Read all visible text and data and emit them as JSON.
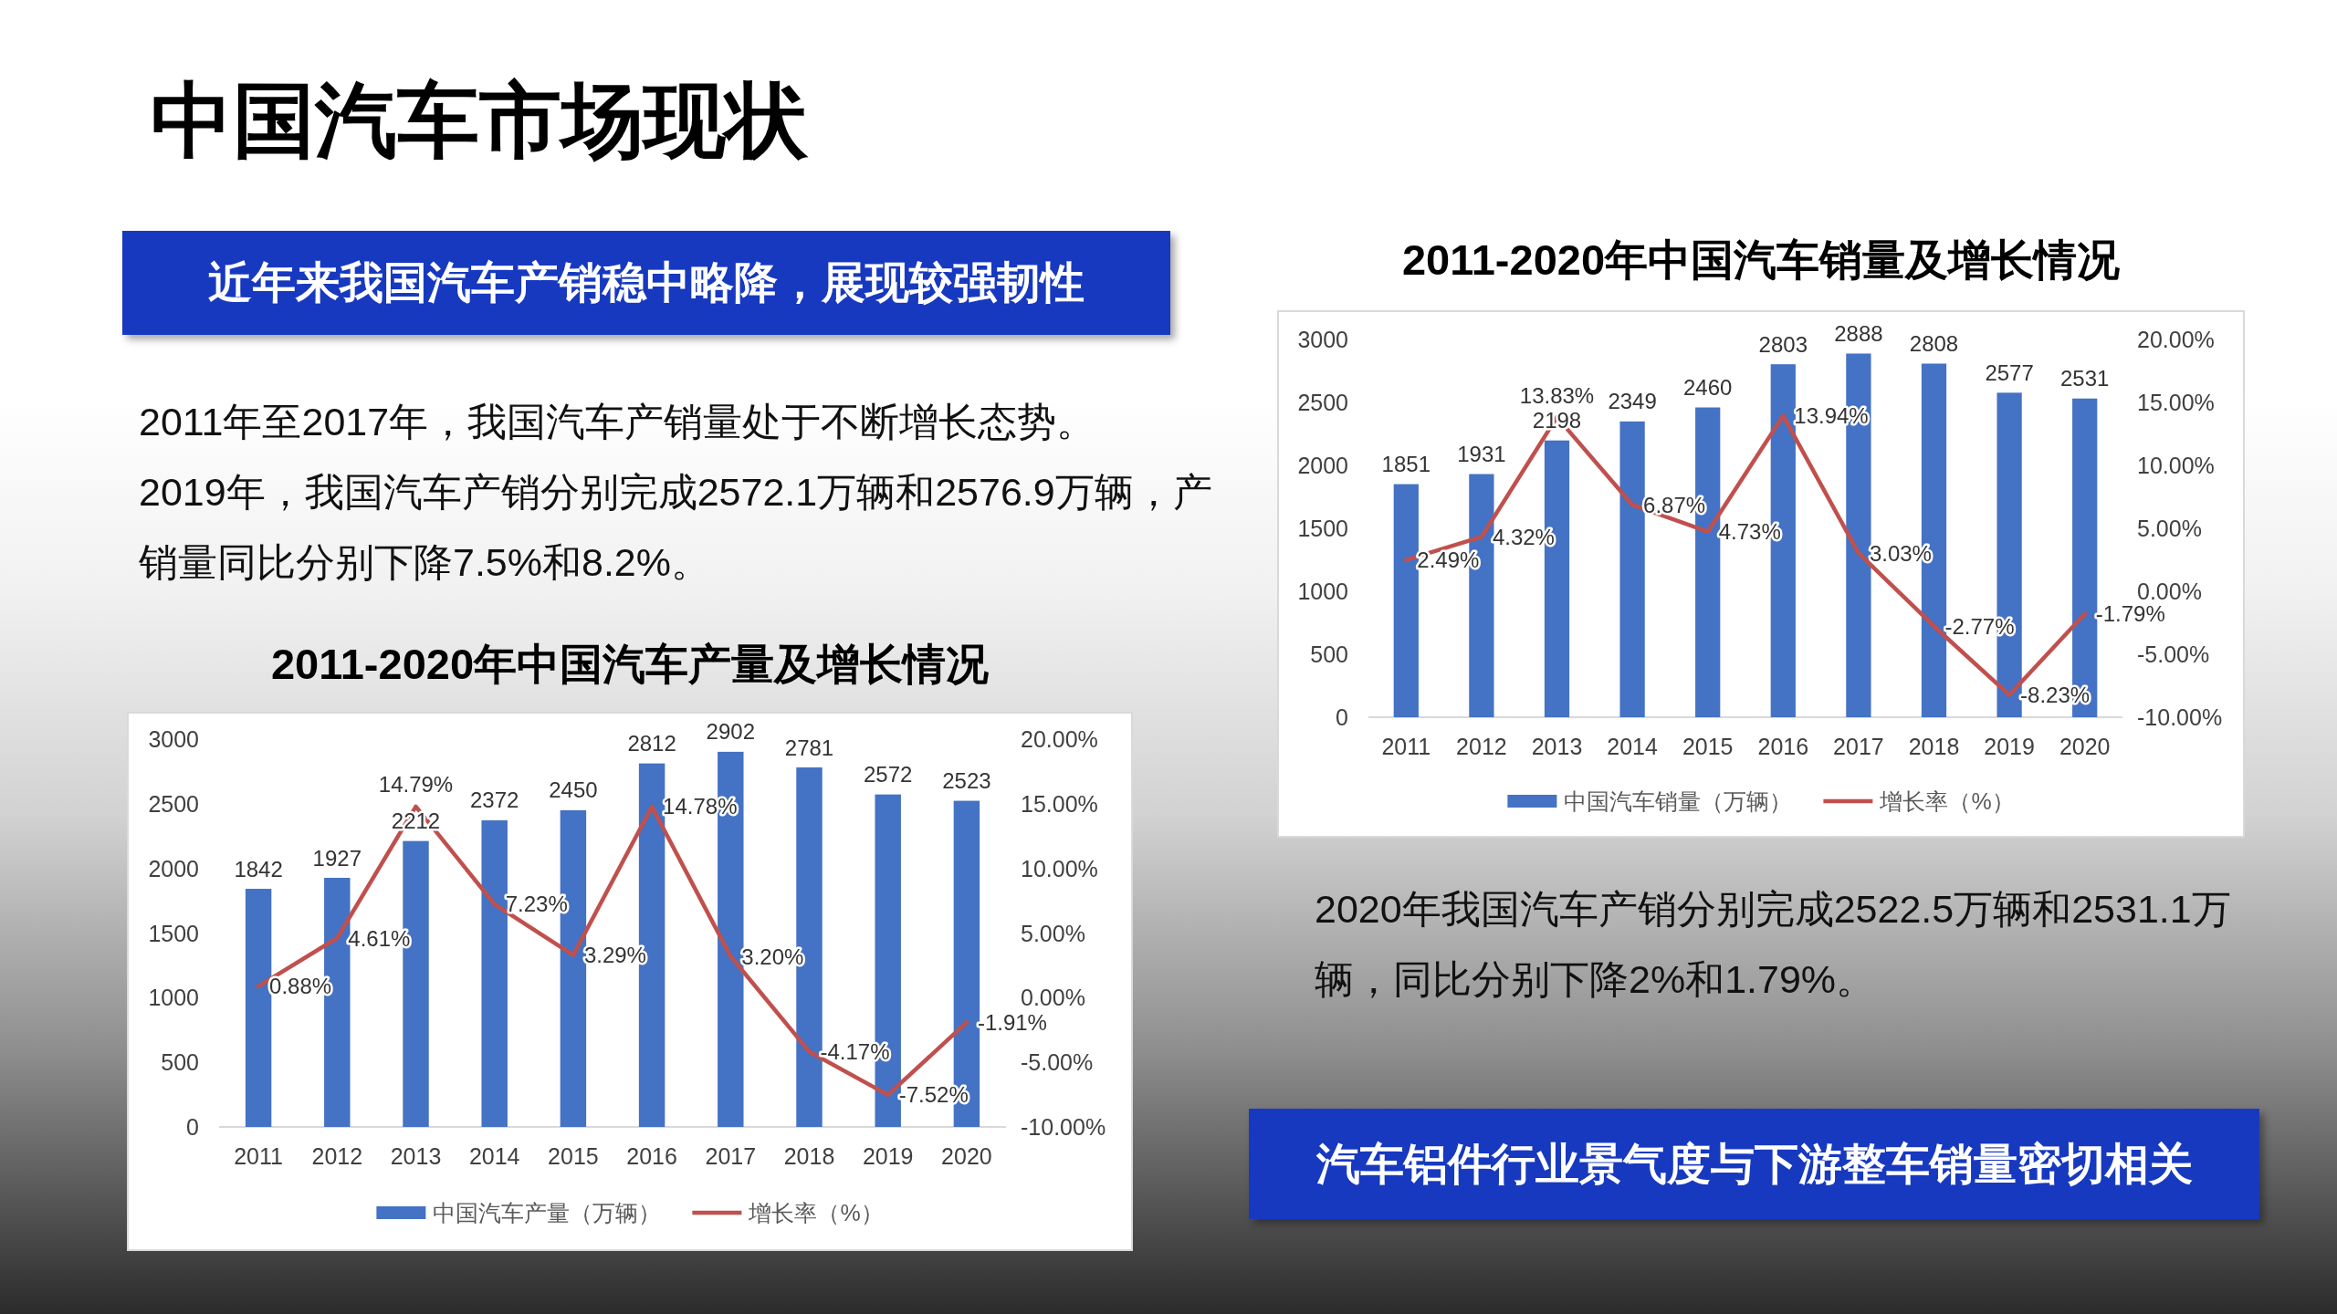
{
  "chart_data": [
    {
      "type": "other",
      "title": "中国汽车市场现状",
      "annotations": [
        "近年来我国汽车产销稳中略降，展现较强韧性",
        "2011年至2017年，我国汽车产销量处于不断增长态势。",
        "2019年，我国汽车产销分别完成2572.1万辆和2576.9万辆，产销量同比分别下降7.5%和8.2%。"
      ]
    },
    {
      "type": "bar",
      "title": "2011-2020年中国汽车产量及增长情况",
      "categories": [
        "2011",
        "2012",
        "2013",
        "2014",
        "2015",
        "2016",
        "2017",
        "2018",
        "2019",
        "2020"
      ],
      "series": [
        {
          "name": "中国汽车产量（万辆）",
          "color": "#4472c4",
          "values": [
            1842,
            1927,
            2212,
            2372,
            2450,
            2812,
            2902,
            2781,
            2572,
            2523
          ],
          "value_labels": [
            "1842",
            "1927",
            "2212",
            "2372",
            "2450",
            "2812",
            "2902",
            "2781",
            "2572",
            "2523"
          ]
        },
        {
          "name": "增长率（%）",
          "type": "line",
          "axis": "y2",
          "color": "#c0504d",
          "values": [
            0.88,
            4.61,
            14.79,
            7.23,
            3.29,
            14.78,
            3.2,
            -4.17,
            -7.52,
            -1.91
          ],
          "value_labels": [
            "0.88%",
            "4.61%",
            "14.79%",
            "7.23%",
            "3.29%",
            "14.78%",
            "3.20%",
            "-4.17%",
            "-7.52%",
            "-1.91%"
          ]
        }
      ],
      "ylim": [
        0,
        3000
      ],
      "yticks": [
        0,
        500,
        1000,
        1500,
        2000,
        2500,
        3000
      ],
      "y2lim": [
        -10,
        20
      ],
      "y2ticks": [
        {
          "value": -10,
          "label": "-10.00%"
        },
        {
          "value": -5,
          "label": "-5.00%"
        },
        {
          "value": 0,
          "label": "0.00%"
        },
        {
          "value": 5,
          "label": "5.00%"
        },
        {
          "value": 10,
          "label": "10.00%"
        },
        {
          "value": 15,
          "label": "15.00%"
        },
        {
          "value": 20,
          "label": "20.00%"
        }
      ],
      "legend": "bottom"
    },
    {
      "type": "bar",
      "title": "2011-2020年中国汽车销量及增长情况",
      "categories": [
        "2011",
        "2012",
        "2013",
        "2014",
        "2015",
        "2016",
        "2017",
        "2018",
        "2019",
        "2020"
      ],
      "series": [
        {
          "name": "中国汽车销量（万辆）",
          "color": "#4472c4",
          "values": [
            1851,
            1931,
            2198,
            2349,
            2460,
            2803,
            2888,
            2808,
            2577,
            2531
          ],
          "value_labels": [
            "1851",
            "1931",
            "2198",
            "2349",
            "2460",
            "2803",
            "2888",
            "2808",
            "2577",
            "2531"
          ]
        },
        {
          "name": "增长率（%）",
          "type": "line",
          "axis": "y2",
          "color": "#c0504d",
          "values": [
            2.49,
            4.32,
            13.83,
            6.87,
            4.73,
            13.94,
            3.03,
            -2.77,
            -8.23,
            -1.79
          ],
          "value_labels": [
            "2.49%",
            "4.32%",
            "13.83%",
            "6.87%",
            "4.73%",
            "13.94%",
            "3.03%",
            "-2.77%",
            "-8.23%",
            "-1.79%"
          ]
        }
      ],
      "ylim": [
        0,
        3000
      ],
      "yticks": [
        0,
        500,
        1000,
        1500,
        2000,
        2500,
        3000
      ],
      "y2lim": [
        -10,
        20
      ],
      "y2ticks": [
        {
          "value": -10,
          "label": "-10.00%"
        },
        {
          "value": -5,
          "label": "-5.00%"
        },
        {
          "value": 0,
          "label": "0.00%"
        },
        {
          "value": 5,
          "label": "5.00%"
        },
        {
          "value": 10,
          "label": "10.00%"
        },
        {
          "value": 15,
          "label": "15.00%"
        },
        {
          "value": 20,
          "label": "20.00%"
        }
      ],
      "legend": "bottom"
    },
    {
      "type": "other",
      "annotations": [
        "2020年我国汽车产销分别完成2522.5万辆和2531.1万辆，同比分别下降2%和1.79%。",
        "汽车铝件行业景气度与下游整车销量密切相关"
      ]
    }
  ]
}
